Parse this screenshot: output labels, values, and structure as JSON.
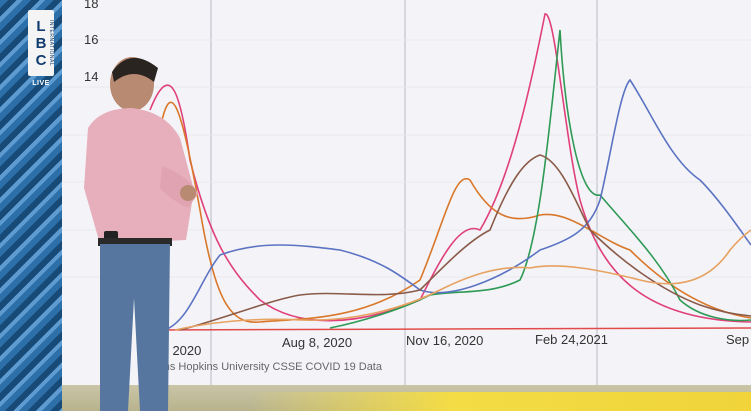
{
  "broadcast": {
    "logo_letters": [
      "L",
      "B",
      "C"
    ],
    "logo_sub": "INTERNATIONAL",
    "live": "LIVE"
  },
  "screen_chart": {
    "y_ticks_visible": [
      "18",
      "16",
      "14"
    ],
    "x_ticks_visible": [
      "1, 2020",
      "Aug 8, 2020",
      "Nov 16, 2020",
      "Feb 24,2021",
      "Sep"
    ],
    "source_visible": "Johns Hopkins University CSSE COVID 19 Data"
  },
  "colors": {
    "pink": "#e0407a",
    "orange": "#d9772a",
    "green": "#2e9a55",
    "blue": "#5b73c2",
    "brown": "#8a5a48",
    "light_orange": "#e7a160",
    "red": "#e24a4a"
  }
}
